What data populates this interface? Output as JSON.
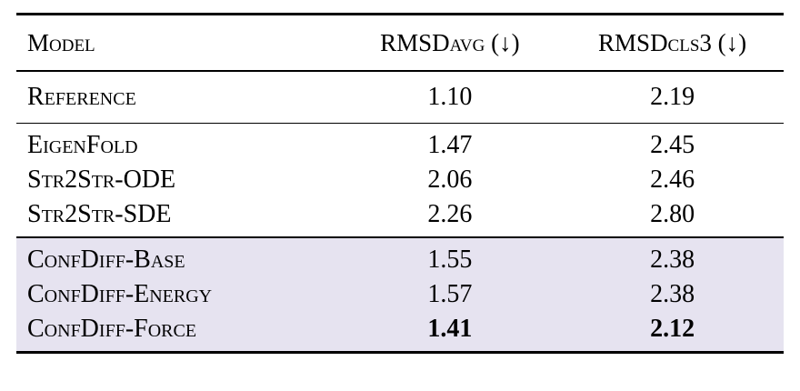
{
  "table": {
    "headers": {
      "model": "Model",
      "rmsd_avg": "RMSDavg (↓)",
      "rmsd_cls3": "RMSDcls3 (↓)"
    },
    "reference_row": {
      "model": "Reference",
      "rmsd_avg": "1.10",
      "rmsd_cls3": "2.19"
    },
    "baseline_rows": [
      {
        "model": "EigenFold",
        "rmsd_avg": "1.47",
        "rmsd_cls3": "2.45"
      },
      {
        "model": "Str2Str-ODE",
        "rmsd_avg": "2.06",
        "rmsd_cls3": "2.46"
      },
      {
        "model": "Str2Str-SDE",
        "rmsd_avg": "2.26",
        "rmsd_cls3": "2.80"
      }
    ],
    "highlighted_rows": [
      {
        "model": "ConfDiff-Base",
        "rmsd_avg": "1.55",
        "rmsd_cls3": "2.38",
        "bold": false
      },
      {
        "model": "ConfDiff-Energy",
        "rmsd_avg": "1.57",
        "rmsd_cls3": "2.38",
        "bold": false
      },
      {
        "model": "ConfDiff-Force",
        "rmsd_avg": "1.41",
        "rmsd_cls3": "2.12",
        "bold": true
      }
    ],
    "colors": {
      "highlight_row_bg": "#e6e3f0",
      "rule_color": "#000000",
      "page_bg": "#ffffff"
    }
  }
}
